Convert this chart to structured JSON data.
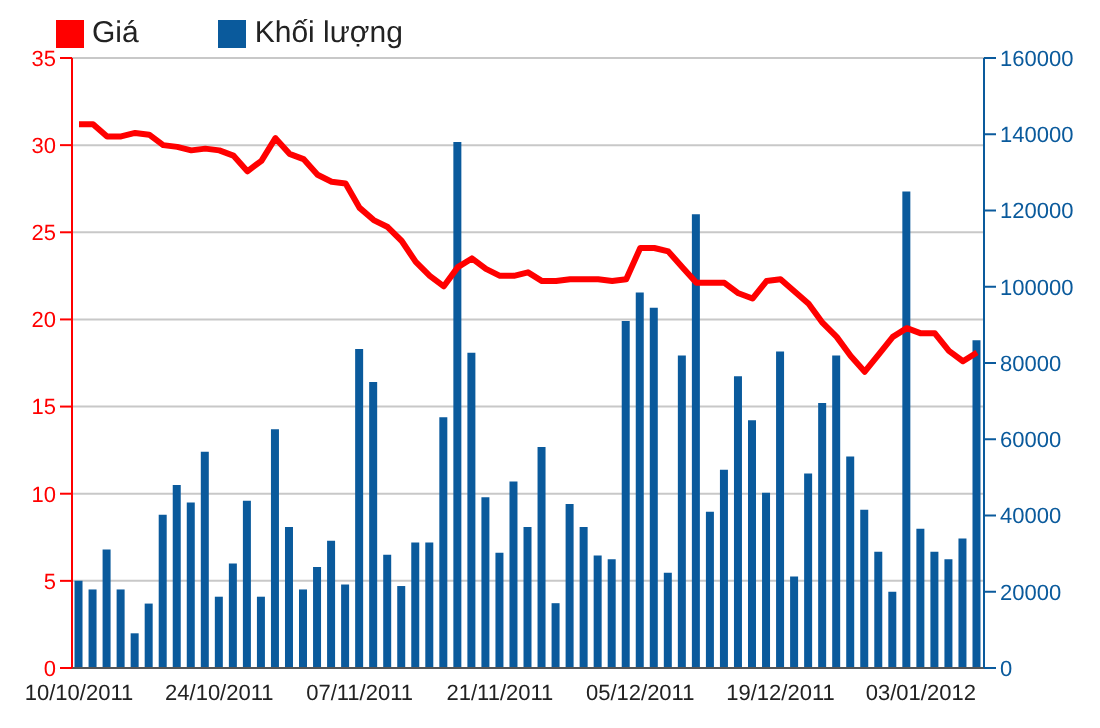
{
  "chart_data": {
    "type": "bar",
    "categories": [
      "10/10/2011",
      null,
      null,
      null,
      null,
      null,
      null,
      null,
      null,
      null,
      "24/10/2011",
      null,
      null,
      null,
      null,
      null,
      null,
      null,
      null,
      null,
      "07/11/2011",
      null,
      null,
      null,
      null,
      null,
      null,
      null,
      null,
      null,
      "21/11/2011",
      null,
      null,
      null,
      null,
      null,
      null,
      null,
      null,
      null,
      "05/12/2011",
      null,
      null,
      null,
      null,
      null,
      null,
      null,
      null,
      null,
      "19/12/2011",
      null,
      null,
      null,
      null,
      null,
      null,
      null,
      null,
      null,
      "03/01/2012",
      null,
      null,
      null,
      null
    ],
    "series": [
      {
        "name": "Giá",
        "type": "line",
        "color": "#ff0000",
        "values": [
          31.2,
          31.2,
          30.5,
          30.5,
          30.7,
          30.6,
          30.0,
          29.9,
          29.7,
          29.8,
          29.7,
          29.4,
          28.5,
          29.1,
          30.4,
          29.5,
          29.2,
          28.3,
          27.9,
          27.8,
          26.4,
          25.7,
          25.3,
          24.5,
          23.3,
          22.5,
          21.9,
          23.0,
          23.5,
          22.9,
          22.5,
          22.5,
          22.7,
          22.2,
          22.2,
          22.3,
          22.3,
          22.3,
          22.2,
          22.3,
          24.1,
          24.1,
          23.9,
          23.0,
          22.1,
          22.1,
          22.1,
          21.5,
          21.2,
          22.2,
          22.3,
          21.6,
          20.9,
          19.8,
          19.0,
          17.9,
          17.0,
          18.0,
          19.0,
          19.5,
          19.2,
          19.2,
          18.2,
          17.6,
          18.1
        ]
      },
      {
        "name": "Khối lượng",
        "axis": "y2",
        "color": "#0a5a9c",
        "values": [
          22900,
          20600,
          31100,
          20600,
          9100,
          16900,
          40200,
          48000,
          43400,
          56700,
          18700,
          27400,
          43900,
          18700,
          62600,
          37000,
          20600,
          26500,
          33400,
          21900,
          83700,
          75000,
          29700,
          21500,
          32900,
          32900,
          65800,
          138000,
          82700,
          44800,
          30200,
          48900,
          37000,
          58000,
          17000,
          43000,
          37000,
          29500,
          28500,
          91000,
          98500,
          94500,
          25000,
          82000,
          119000,
          41000,
          52000,
          76500,
          65000,
          46000,
          83000,
          24000,
          51000,
          69500,
          82000,
          55500,
          41500,
          30500,
          20000,
          125000,
          36500,
          30500,
          28500,
          34000,
          86000
        ]
      }
    ],
    "ylim": [
      0,
      35
    ],
    "yticks": [
      0,
      5,
      10,
      15,
      20,
      25,
      30,
      35
    ],
    "y2lim": [
      0,
      160000
    ],
    "y2ticks": [
      0,
      20000,
      40000,
      60000,
      80000,
      100000,
      120000,
      140000,
      160000
    ],
    "grid": "y",
    "legend": "top left"
  }
}
